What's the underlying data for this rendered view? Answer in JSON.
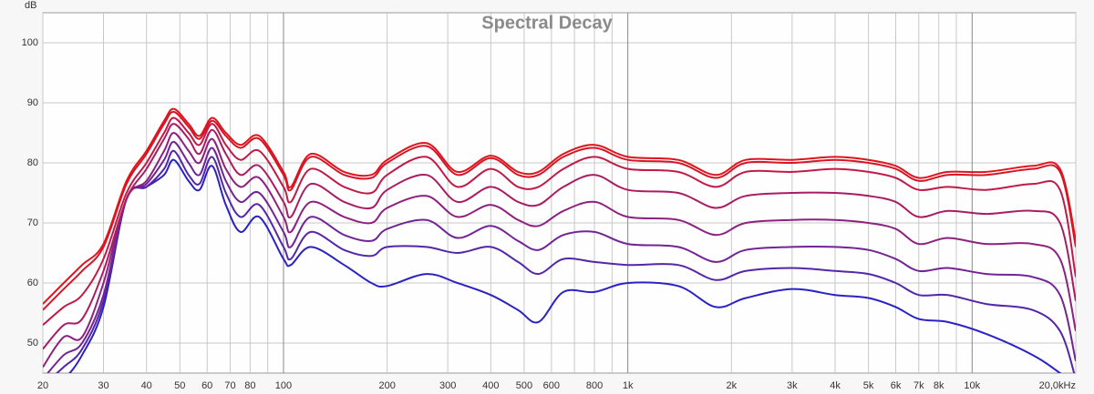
{
  "chart_data": {
    "type": "line",
    "title": "Spectral Decay",
    "ylabel": "dB",
    "log_x": true,
    "grid": true,
    "xlim": [
      20,
      20000
    ],
    "ylim": [
      45,
      105
    ],
    "yticks": [
      50,
      60,
      70,
      80,
      90,
      100
    ],
    "xticks": [
      20,
      30,
      40,
      50,
      60,
      70,
      80,
      100,
      200,
      300,
      400,
      500,
      600,
      800,
      {
        "value": 1000,
        "label": "1k"
      },
      {
        "value": 2000,
        "label": "2k"
      },
      {
        "value": 3000,
        "label": "3k"
      },
      {
        "value": 4000,
        "label": "4k"
      },
      {
        "value": 5000,
        "label": "5k"
      },
      {
        "value": 6000,
        "label": "6k"
      },
      {
        "value": 7000,
        "label": "7k"
      },
      {
        "value": 8000,
        "label": "8k"
      },
      {
        "value": 10000,
        "label": "10k"
      },
      {
        "value": 20000,
        "label": "20,0kHz"
      }
    ],
    "xgrid_minor": [
      90,
      700,
      900,
      9000
    ],
    "x": [
      20,
      23,
      26,
      30,
      35,
      40,
      45,
      48,
      53,
      57,
      62,
      68,
      75,
      85,
      100,
      105,
      120,
      150,
      180,
      200,
      260,
      320,
      400,
      480,
      550,
      650,
      800,
      1000,
      1400,
      1800,
      2200,
      3000,
      4000,
      5000,
      6000,
      7000,
      8500,
      11000,
      15000,
      18000,
      20000
    ],
    "series": [
      {
        "color": "#e0141c",
        "values": [
          56.5,
          60,
          63,
          66.5,
          77,
          82,
          87,
          89,
          86.5,
          84.5,
          87.5,
          85,
          83,
          84.5,
          78.5,
          76,
          81.5,
          78.5,
          78,
          80.5,
          83.3,
          78.5,
          81.2,
          78.5,
          78.5,
          81.5,
          83,
          81,
          80.5,
          78,
          80.5,
          80.5,
          81,
          80.5,
          79.5,
          77.5,
          78.5,
          78.5,
          79.5,
          79,
          67
        ]
      },
      {
        "color": "#d41628",
        "values": [
          55.5,
          59,
          62,
          66,
          76.5,
          81.5,
          86.5,
          88.5,
          86,
          84,
          87,
          84.5,
          82.5,
          84,
          78,
          75.5,
          81,
          78,
          77.5,
          80,
          82.8,
          78,
          80.8,
          78,
          78,
          81,
          82.5,
          80.5,
          80,
          77.5,
          80,
          80,
          80.5,
          80,
          79,
          77,
          78,
          78,
          79,
          78.5,
          66
        ]
      },
      {
        "color": "#c01a48",
        "values": [
          53,
          56,
          58,
          64,
          75,
          80,
          85,
          87.5,
          85,
          83,
          86.5,
          83,
          80.5,
          82,
          76,
          73.5,
          79,
          76,
          75,
          78,
          81,
          76,
          79,
          76,
          76,
          79,
          81,
          79,
          78.5,
          76,
          78.5,
          78.5,
          79,
          78.5,
          77.5,
          75.5,
          76,
          75.5,
          76.5,
          75.5,
          61
        ]
      },
      {
        "color": "#a81c64",
        "values": [
          49,
          53,
          54,
          62,
          74,
          79,
          84,
          86.5,
          84,
          81.5,
          85.5,
          81.5,
          78,
          79.5,
          73.5,
          71,
          76.5,
          73.5,
          72.5,
          75.5,
          78,
          73.5,
          76,
          73.5,
          73,
          76,
          78,
          75.5,
          75,
          72.5,
          74.5,
          75,
          75,
          74.5,
          73.5,
          71,
          72,
          71.5,
          72,
          70,
          57
        ]
      },
      {
        "color": "#8e2080",
        "values": [
          46,
          51,
          51,
          60,
          74,
          77,
          82,
          85,
          82,
          80,
          84,
          79,
          76,
          77.5,
          71,
          68.5,
          73.5,
          71,
          70,
          72.5,
          74.5,
          71,
          73,
          70.5,
          69.5,
          72,
          73.5,
          71,
          70.5,
          68,
          70,
          70.5,
          70.5,
          70,
          69,
          66.5,
          67.5,
          66.5,
          66.5,
          64,
          52
        ]
      },
      {
        "color": "#722494",
        "values": [
          44,
          48,
          50,
          58,
          74,
          76.5,
          80.5,
          83.5,
          80,
          78,
          82.5,
          77,
          73.5,
          75,
          68.5,
          66,
          71,
          68,
          67,
          69,
          70.5,
          67.5,
          69.5,
          67,
          65.5,
          68,
          68.5,
          66.5,
          66,
          63.5,
          65.5,
          66,
          66,
          65.5,
          64,
          62,
          62.5,
          61.5,
          61,
          58,
          47
        ]
      },
      {
        "color": "#5426a8",
        "values": [
          43,
          46,
          49,
          57,
          74,
          76,
          79,
          82,
          78,
          76.5,
          81,
          75,
          71,
          73,
          66,
          64,
          68.5,
          65.5,
          64.5,
          66,
          66,
          65,
          66,
          63.5,
          61.5,
          64,
          63.5,
          63,
          63,
          60.5,
          62,
          62.5,
          62,
          61.5,
          60,
          58,
          58,
          56.5,
          55.5,
          52,
          44
        ]
      },
      {
        "color": "#2a22c4",
        "values": [
          42,
          44,
          48,
          56,
          74,
          76,
          78,
          80.5,
          77,
          75.5,
          79.5,
          73,
          68.5,
          71,
          64,
          63,
          66,
          63,
          60,
          59.5,
          61.5,
          60,
          58,
          55.5,
          53.5,
          58.5,
          58.5,
          60,
          59.5,
          56,
          57.5,
          59,
          58,
          57.5,
          56,
          54,
          53.5,
          51.5,
          48,
          45,
          43
        ]
      }
    ]
  }
}
